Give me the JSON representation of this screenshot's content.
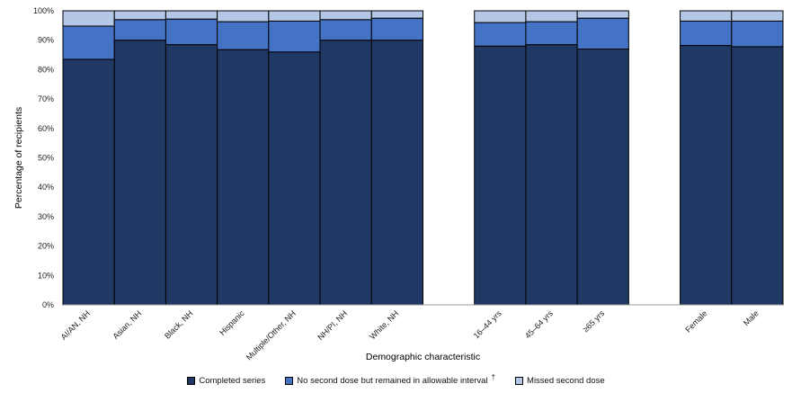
{
  "chart_data": {
    "type": "bar",
    "stacked": "percent",
    "xlabel": "Demographic characteristic",
    "ylabel": "Percentage of recipients",
    "ylim": [
      0,
      100
    ],
    "yticks": [
      "0%",
      "10%",
      "20%",
      "30%",
      "40%",
      "50%",
      "60%",
      "70%",
      "80%",
      "90%",
      "100%"
    ],
    "categories": [
      "AI/AN, NH",
      "Asian, NH",
      "Black, NH",
      "Hispanic",
      "Multiple/Other, NH",
      "NH/PI, NH",
      "White, NH",
      "",
      "16–44 yrs",
      "45–64 yrs",
      "≥65 yrs",
      "",
      "Female",
      "Male"
    ],
    "series": [
      {
        "name": "Completed series",
        "color": "#203864",
        "values": [
          83.5,
          90.0,
          88.5,
          86.8,
          86.0,
          90.0,
          90.0,
          null,
          88.0,
          88.5,
          87.0,
          null,
          88.2,
          87.8
        ]
      },
      {
        "name": "No second dose but remained in allowable interval",
        "color": "#4472c4",
        "values": [
          11.3,
          7.0,
          8.7,
          9.5,
          10.5,
          7.0,
          7.5,
          null,
          8.0,
          7.8,
          10.5,
          null,
          8.3,
          8.7
        ]
      },
      {
        "name": "Missed second dose",
        "color": "#b4c7e7",
        "values": [
          5.2,
          3.0,
          2.8,
          3.7,
          3.5,
          3.0,
          2.5,
          null,
          4.0,
          3.7,
          2.5,
          null,
          3.5,
          3.5
        ]
      }
    ],
    "legend_position": "bottom",
    "grid": false
  },
  "legend": {
    "items": [
      {
        "label": "Completed series",
        "color": "#203864",
        "dagger": ""
      },
      {
        "label": "No second dose but remained in allowable interval",
        "color": "#4472c4",
        "dagger": "†"
      },
      {
        "label": "Missed second dose",
        "color": "#b4c7e7",
        "dagger": ""
      }
    ]
  }
}
